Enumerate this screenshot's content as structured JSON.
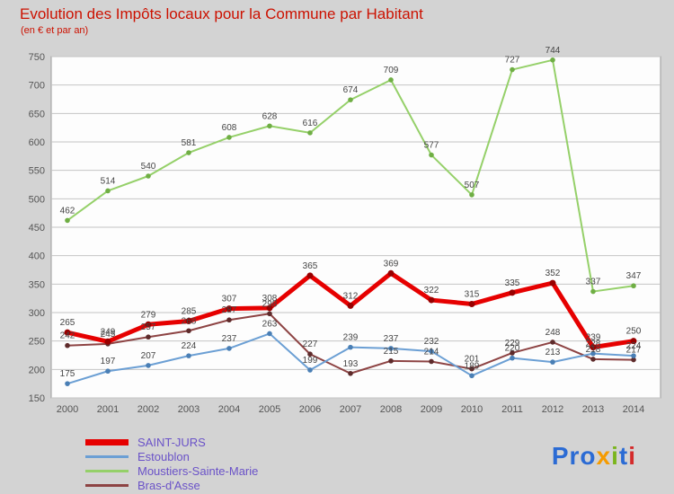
{
  "title": "Evolution des Impôts locaux pour la Commune par Habitant",
  "subtitle": "(en € et par an)",
  "colors": {
    "background": "#d3d3d3",
    "plot_background": "#fdfdfd",
    "plot_border": "#9a9a9a",
    "grid": "#c4c4c4",
    "axis_text": "#555555",
    "point_label_text": "#444444",
    "title_text": "#cc1100",
    "legend_text": "#6a52c8"
  },
  "chart_data": {
    "type": "line",
    "x": [
      2000,
      2001,
      2002,
      2003,
      2004,
      2005,
      2006,
      2007,
      2008,
      2009,
      2010,
      2011,
      2012,
      2013,
      2014
    ],
    "ylim": [
      150,
      750
    ],
    "ytick_step": 50,
    "grid": true,
    "legend_position": "bottom-left",
    "xlabel": "",
    "ylabel": "",
    "series": [
      {
        "name": "SAINT-JURS",
        "color": "#e60000",
        "dot_color": "#990000",
        "thickness": 5,
        "values": [
          265,
          249,
          279,
          285,
          307,
          308,
          365,
          312,
          369,
          322,
          315,
          335,
          352,
          239,
          250
        ]
      },
      {
        "name": "Estoublon",
        "color": "#6b9fd4",
        "dot_color": "#4a7fb5",
        "thickness": 2,
        "values": [
          175,
          197,
          207,
          224,
          237,
          263,
          199,
          239,
          237,
          232,
          189,
          220,
          213,
          228,
          224
        ]
      },
      {
        "name": "Moustiers-Sainte-Marie",
        "color": "#95d069",
        "dot_color": "#6fae44",
        "thickness": 2,
        "values": [
          462,
          514,
          540,
          581,
          608,
          628,
          616,
          674,
          709,
          577,
          507,
          727,
          744,
          337,
          347
        ]
      },
      {
        "name": "Bras-d'Asse",
        "color": "#8d4343",
        "dot_color": "#5e2b2b",
        "thickness": 2,
        "values": [
          242,
          245,
          257,
          268,
          287,
          298,
          227,
          193,
          215,
          214,
          201,
          229,
          248,
          218,
          217
        ]
      }
    ]
  },
  "legend": {
    "items": [
      {
        "label": "SAINT-JURS",
        "color": "#e60000",
        "thick": true
      },
      {
        "label": "Estoublon",
        "color": "#6b9fd4",
        "thick": false
      },
      {
        "label": "Moustiers-Sainte-Marie",
        "color": "#95d069",
        "thick": false
      },
      {
        "label": "Bras-d'Asse",
        "color": "#8d4343",
        "thick": false
      }
    ]
  },
  "logo": {
    "letters": [
      {
        "ch": "P",
        "color": "#2b6bd4"
      },
      {
        "ch": "r",
        "color": "#2b6bd4"
      },
      {
        "ch": "o",
        "color": "#2b6bd4"
      },
      {
        "ch": "x",
        "color": "#f59b00"
      },
      {
        "ch": "i",
        "color": "#7ab51d"
      },
      {
        "ch": "t",
        "color": "#2b6bd4"
      },
      {
        "ch": "i",
        "color": "#d42b2b"
      }
    ]
  }
}
